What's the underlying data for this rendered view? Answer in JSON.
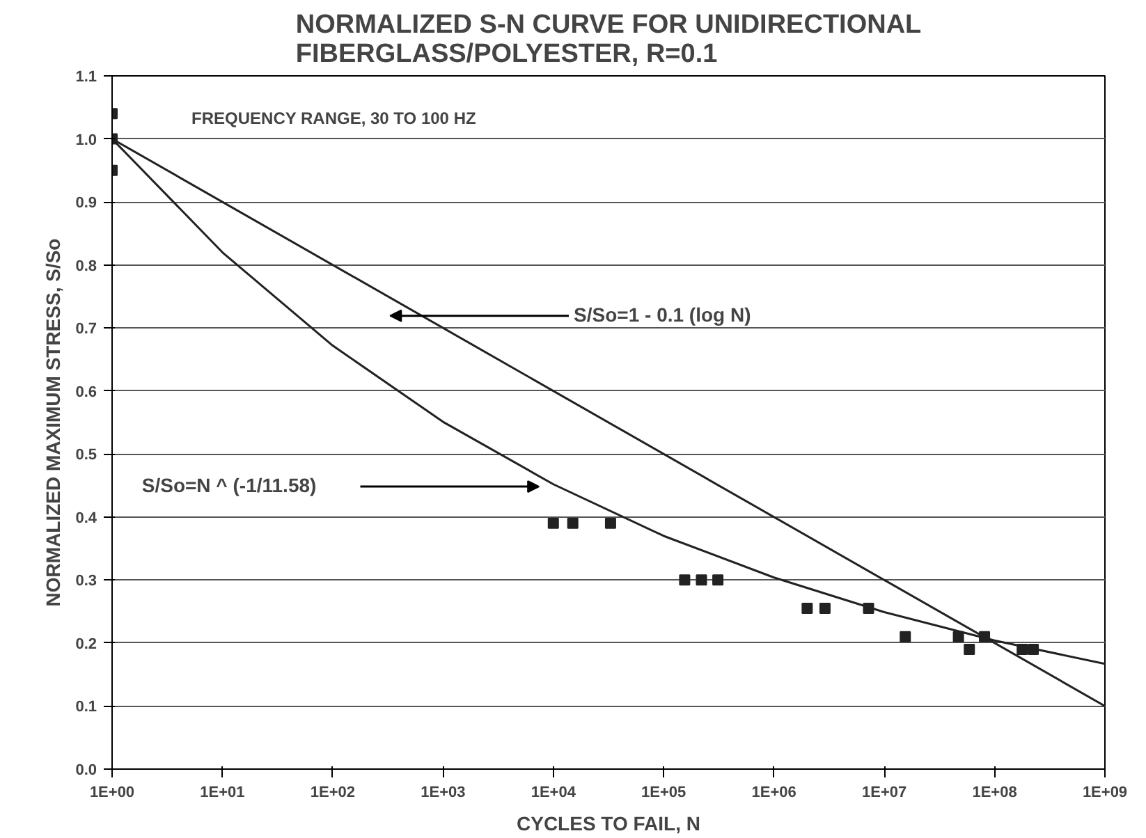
{
  "chart_data": {
    "type": "scatter",
    "title": "NORMALIZED S-N CURVE FOR UNIDIRECTIONAL\nFIBERGLASS/POLYESTER, R=0.1",
    "xlabel": "CYCLES TO FAIL, N",
    "ylabel": "NORMALIZED MAXIMUM STRESS, S/So",
    "log": "x",
    "grid": "y",
    "marker": "square",
    "xlim": [
      1,
      1000000000
    ],
    "ylim": [
      0,
      1.1
    ],
    "xticks": [
      {
        "value": 1,
        "label": "1E+00"
      },
      {
        "value": 10,
        "label": "1E+01"
      },
      {
        "value": 100,
        "label": "1E+02"
      },
      {
        "value": 1000,
        "label": "1E+03"
      },
      {
        "value": 10000,
        "label": "1E+04"
      },
      {
        "value": 100000,
        "label": "1E+05"
      },
      {
        "value": 1000000,
        "label": "1E+06"
      },
      {
        "value": 10000000,
        "label": "1E+07"
      },
      {
        "value": 100000000,
        "label": "1E+08"
      },
      {
        "value": 1000000000,
        "label": "1E+09"
      }
    ],
    "yticks": [
      {
        "value": 0,
        "label": "0.0"
      },
      0.1,
      0.2,
      0.3,
      0.4,
      0.5,
      0.6,
      0.7,
      0.8,
      0.9,
      {
        "value": 1,
        "label": "1.0"
      },
      1.1
    ],
    "series": [
      {
        "color": "#222222",
        "x": [
          1,
          1,
          1,
          10000,
          15000,
          33000,
          155000,
          220000,
          310000,
          2000000,
          2900000,
          7200000,
          15500000,
          47000000,
          59000000,
          81000000,
          178000000,
          224000000
        ],
        "values": [
          1.04,
          1.0,
          0.95,
          0.39,
          0.39,
          0.39,
          0.3,
          0.3,
          0.3,
          0.255,
          0.255,
          0.255,
          0.21,
          0.21,
          0.19,
          0.21,
          0.19,
          0.19
        ]
      },
      {
        "type": "line",
        "color": "#222222",
        "marker": "none",
        "x": [
          1,
          1000000000
        ],
        "values": [
          1.0,
          0.1
        ]
      },
      {
        "type": "line",
        "color": "#222222",
        "marker": "none",
        "x": [
          1,
          10,
          100,
          1000,
          10000,
          100000,
          1000000,
          10000000,
          100000000,
          1000000000
        ],
        "values": [
          1.0,
          0.82,
          0.672,
          0.551,
          0.452,
          0.37,
          0.304,
          0.249,
          0.204,
          0.167
        ]
      }
    ],
    "annotations": [
      {
        "text": "FREQUENCY RANGE, 30 TO 100 HZ"
      },
      "S/So=1 - 0.1 (log N)",
      "S/So=N ^ (-1/11.58)"
    ]
  }
}
